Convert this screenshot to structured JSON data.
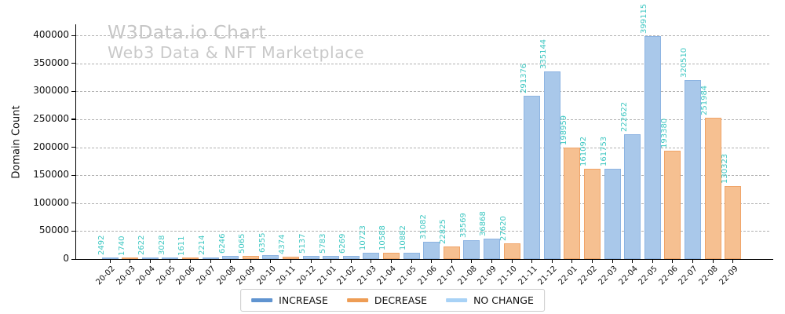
{
  "watermark": {
    "title": "W3Data.io Chart",
    "subtitle": "Web3 Data & NFT Marketplace"
  },
  "chart_data": {
    "type": "bar",
    "title": "",
    "xlabel": "",
    "ylabel": "Domain Count",
    "ylim": [
      0,
      420000
    ],
    "yticks": [
      0,
      50000,
      100000,
      150000,
      200000,
      250000,
      300000,
      350000,
      400000
    ],
    "grid": "horizontal-dashed",
    "categories": [
      "20-02",
      "20-03",
      "20-04",
      "20-05",
      "20-06",
      "20-07",
      "20-08",
      "20-09",
      "20-10",
      "20-11",
      "20-12",
      "21-01",
      "21-02",
      "21-03",
      "21-04",
      "21-05",
      "21-06",
      "21-07",
      "21-08",
      "21-09",
      "21-10",
      "21-11",
      "21-12",
      "22-01",
      "22-02",
      "22-03",
      "22-04",
      "22-05",
      "22-06",
      "22-07",
      "22-08",
      "22-09"
    ],
    "values": [
      2492,
      1740,
      2622,
      3028,
      1611,
      2214,
      6246,
      5065,
      6355,
      4374,
      5137,
      5783,
      6269,
      10723,
      10588,
      10882,
      31082,
      22825,
      33569,
      36868,
      27620,
      291376,
      335144,
      198959,
      161092,
      161753,
      222622,
      399115,
      193380,
      320510,
      251984,
      130323
    ],
    "directions": [
      "increase",
      "decrease",
      "increase",
      "increase",
      "decrease",
      "increase",
      "increase",
      "decrease",
      "increase",
      "decrease",
      "increase",
      "increase",
      "increase",
      "increase",
      "decrease",
      "increase",
      "increase",
      "decrease",
      "increase",
      "increase",
      "decrease",
      "increase",
      "increase",
      "decrease",
      "decrease",
      "increase",
      "increase",
      "increase",
      "decrease",
      "increase",
      "decrease",
      "decrease"
    ],
    "legend": {
      "position": "bottom-center",
      "entries": [
        {
          "label": "INCREASE",
          "color": "#6094d0"
        },
        {
          "label": "DECREASE",
          "color": "#ee9d55"
        },
        {
          "label": "NO CHANGE",
          "color": "#a8d2f6"
        }
      ]
    },
    "colors": {
      "increase_fill": "#a9c8ea",
      "increase_edge": "#8db4e2",
      "decrease_fill": "#f6c091",
      "decrease_edge": "#f0a468",
      "nochange_fill": "#a8d2f6",
      "value_label": "#3ec7c2",
      "grid": "#b0b0b0",
      "watermark": "#c6c6c6"
    }
  }
}
